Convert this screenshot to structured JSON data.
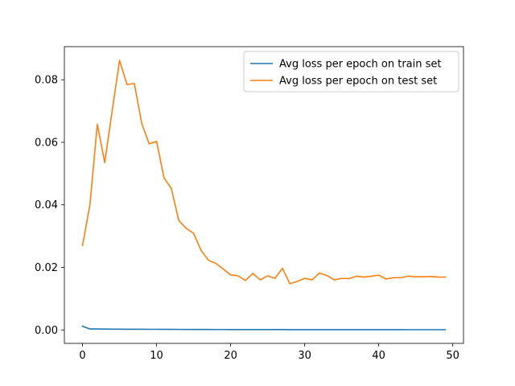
{
  "chart_data": {
    "type": "line",
    "title": "",
    "xlabel": "",
    "ylabel": "",
    "xlim": [
      -2.45,
      51.45
    ],
    "ylim": [
      -0.0043,
      0.0906
    ],
    "xticks": [
      0,
      10,
      20,
      30,
      40,
      50
    ],
    "xtick_labels": [
      "0",
      "10",
      "20",
      "30",
      "40",
      "50"
    ],
    "yticks": [
      0.0,
      0.02,
      0.04,
      0.06,
      0.08
    ],
    "ytick_labels": [
      "0.00",
      "0.02",
      "0.04",
      "0.06",
      "0.08"
    ],
    "grid": false,
    "legend_position": "upper-right",
    "x": [
      0,
      1,
      2,
      3,
      4,
      5,
      6,
      7,
      8,
      9,
      10,
      11,
      12,
      13,
      14,
      15,
      16,
      17,
      18,
      19,
      20,
      21,
      22,
      23,
      24,
      25,
      26,
      27,
      28,
      29,
      30,
      31,
      32,
      33,
      34,
      35,
      36,
      37,
      38,
      39,
      40,
      41,
      42,
      43,
      44,
      45,
      46,
      47,
      48,
      49
    ],
    "series": [
      {
        "name": "Avg loss per epoch on train set",
        "color": "#1f77b4",
        "values": [
          0.0012,
          0.0003,
          0.0003,
          0.00028,
          0.00026,
          0.00024,
          0.00023,
          0.00022,
          0.00021,
          0.0002,
          0.0002,
          0.00019,
          0.00018,
          0.00017,
          0.00016,
          0.00016,
          0.00015,
          0.00015,
          0.00014,
          0.00014,
          0.00013,
          0.00013,
          0.00012,
          0.00012,
          0.00012,
          0.00011,
          0.00011,
          0.00011,
          0.0001,
          0.0001,
          0.0001,
          0.0001,
          0.0001,
          9e-05,
          9e-05,
          9e-05,
          9e-05,
          9e-05,
          8e-05,
          8e-05,
          8e-05,
          8e-05,
          8e-05,
          8e-05,
          7e-05,
          7e-05,
          7e-05,
          7e-05,
          7e-05,
          7e-05
        ]
      },
      {
        "name": "Avg loss per epoch on test set",
        "color": "#ff7f0e",
        "values": [
          0.027,
          0.04,
          0.0658,
          0.0535,
          0.07,
          0.0862,
          0.0785,
          0.0788,
          0.066,
          0.0595,
          0.0603,
          0.0487,
          0.0452,
          0.035,
          0.0325,
          0.0309,
          0.0255,
          0.0223,
          0.0213,
          0.0195,
          0.0176,
          0.0173,
          0.0158,
          0.0181,
          0.016,
          0.0173,
          0.0165,
          0.0197,
          0.0148,
          0.0155,
          0.0165,
          0.016,
          0.0182,
          0.0174,
          0.016,
          0.0165,
          0.0164,
          0.0172,
          0.0169,
          0.0172,
          0.0175,
          0.0163,
          0.0167,
          0.0167,
          0.0172,
          0.017,
          0.017,
          0.0171,
          0.0169,
          0.0169
        ]
      }
    ]
  }
}
